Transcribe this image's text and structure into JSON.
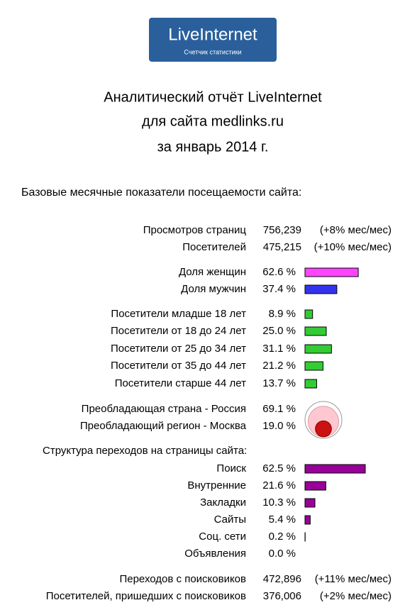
{
  "header": {
    "logo_title": "LiveInternet",
    "logo_subtitle": "Счетчик статистики",
    "title_lines": [
      "Аналитический отчёт LiveInternet",
      "для сайта medlinks.ru",
      "за январь 2014 г."
    ]
  },
  "subtitle": "Базовые месячные показатели посещаемости сайта:",
  "main_stats": [
    {
      "label": "Просмотров страниц",
      "value": "756,239",
      "change": "(+8% мес/мес)"
    },
    {
      "label": "Посетителей",
      "value": "475,215",
      "change": "(+10% мес/мес)"
    }
  ],
  "gender": {
    "color": "#ff44ff",
    "rows": [
      {
        "label": "Доля женщин",
        "value": 62.6,
        "value_label": "62.6 %",
        "color": "#ff44ff"
      },
      {
        "label": "Доля мужчин",
        "value": 37.4,
        "value_label": "37.4 %",
        "color": "#3333ee"
      }
    ]
  },
  "age": {
    "color": "#33cc33",
    "rows": [
      {
        "label": "Посетители младше 18 лет",
        "value": 8.9,
        "value_label": "8.9 %"
      },
      {
        "label": "Посетители от 18 до 24 лет",
        "value": 25.0,
        "value_label": "25.0 %"
      },
      {
        "label": "Посетители от 25 до 34 лет",
        "value": 31.1,
        "value_label": "31.1 %"
      },
      {
        "label": "Посетители от 35 до 44 лет",
        "value": 21.2,
        "value_label": "21.2 %"
      },
      {
        "label": "Посетители старше 44 лет",
        "value": 13.7,
        "value_label": "13.7 %"
      }
    ]
  },
  "geo": {
    "rows": [
      {
        "label": "Преобладающая страна - Россия",
        "value": 69.1,
        "value_label": "69.1 %",
        "color": "#ffc8d0"
      },
      {
        "label": "Преобладающий регион - Москва",
        "value": 19.0,
        "value_label": "19.0 %",
        "color": "#cc1111"
      }
    ]
  },
  "traffic": {
    "heading": "Структура переходов на страницы сайта:",
    "color": "#990099",
    "rows": [
      {
        "label": "Поиск",
        "value": 62.5,
        "value_label": "62.5 %"
      },
      {
        "label": "Внутренние",
        "value": 21.6,
        "value_label": "21.6 %"
      },
      {
        "label": "Закладки",
        "value": 10.3,
        "value_label": "10.3 %"
      },
      {
        "label": "Сайты",
        "value": 5.4,
        "value_label": "5.4 %"
      },
      {
        "label": "Соц. сети",
        "value": 0.2,
        "value_label": "0.2 %"
      },
      {
        "label": "Объявления",
        "value": 0.0,
        "value_label": "0.0 %"
      }
    ]
  },
  "search_stats": [
    {
      "label": "Переходов с поисковиков",
      "value": "472,896",
      "change": "(+11% мес/мес)"
    },
    {
      "label": "Посетителей, пришедших с поисковиков",
      "value": "376,006",
      "change": "(+2% мес/мес)"
    }
  ]
}
